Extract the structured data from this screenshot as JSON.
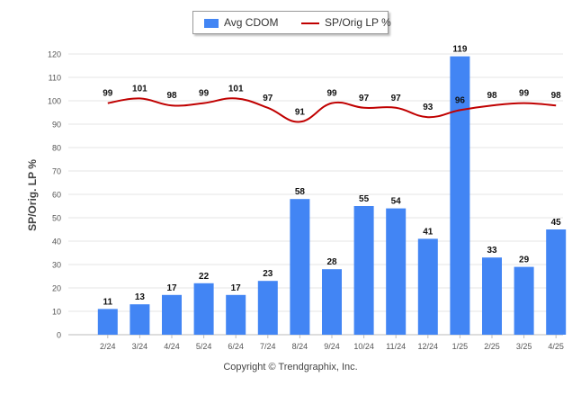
{
  "chart_data": {
    "type": "bar",
    "categories": [
      "2/24",
      "3/24",
      "4/24",
      "5/24",
      "6/24",
      "7/24",
      "8/24",
      "9/24",
      "10/24",
      "11/24",
      "12/24",
      "1/25",
      "2/25",
      "3/25",
      "4/25"
    ],
    "series": [
      {
        "name": "Avg CDOM",
        "kind": "bar",
        "color": "#4285f4",
        "values": [
          11,
          13,
          17,
          22,
          17,
          23,
          58,
          28,
          55,
          54,
          41,
          119,
          33,
          29,
          45
        ]
      },
      {
        "name": "SP/Orig LP %",
        "kind": "line",
        "color": "#c00000",
        "values": [
          99,
          101,
          98,
          99,
          101,
          97,
          91,
          99,
          97,
          97,
          93,
          96,
          98,
          99,
          98
        ]
      }
    ],
    "ylabel": "SP/Orig. LP %",
    "ylim": [
      0,
      120
    ],
    "yticks": [
      0,
      10,
      20,
      30,
      40,
      50,
      60,
      70,
      80,
      90,
      100,
      110,
      120
    ],
    "grid": true,
    "legend_position": "top-center"
  },
  "credit": "Copyright © Trendgraphix, Inc."
}
